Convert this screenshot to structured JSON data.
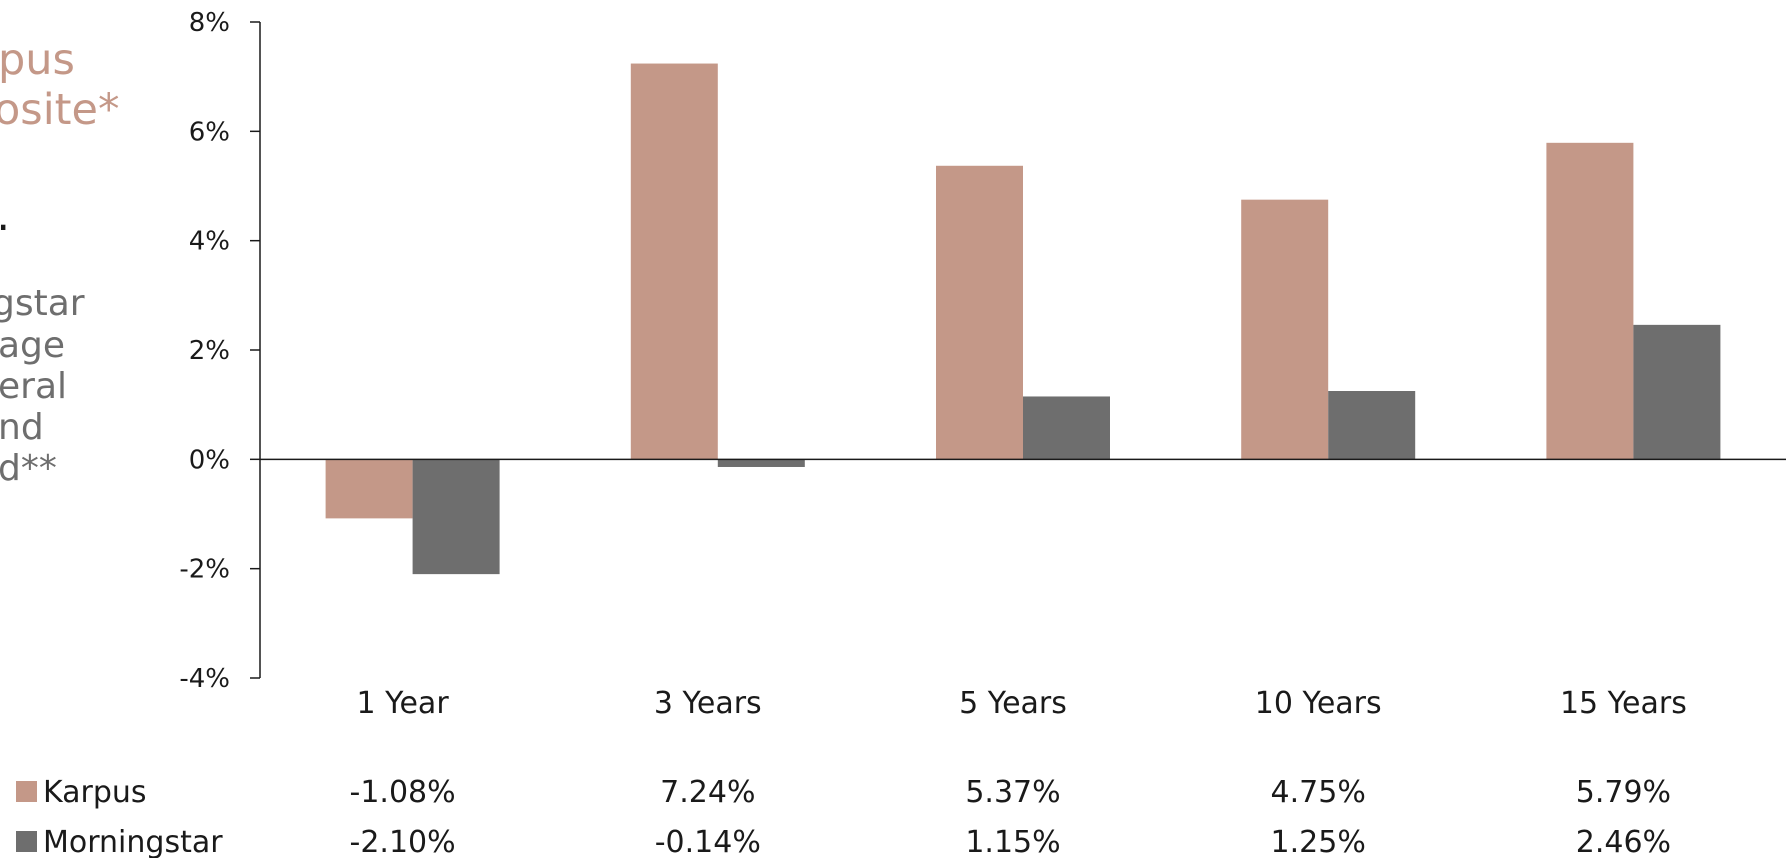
{
  "left_panel": {
    "line1": "pus",
    "line2": "osite*",
    "line3": "s.",
    "line4": "gstar",
    "line5": "age",
    "line6": "eral",
    "line7": "nd",
    "line8": "d**",
    "colors": {
      "title": "#c49888",
      "body": "#1a1a1a",
      "subtitle": "#6e6e6e"
    }
  },
  "chart_data": {
    "type": "bar",
    "categories": [
      "1 Year",
      "3 Years",
      "5 Years",
      "10 Years",
      "15 Years"
    ],
    "series": [
      {
        "name": "Karpus",
        "values": [
          -1.08,
          7.24,
          5.37,
          4.75,
          5.79
        ],
        "labels": [
          "-1.08%",
          "7.24%",
          "5.37%",
          "4.75%",
          "5.79%"
        ],
        "color": "#c49888"
      },
      {
        "name": "Morningstar",
        "values": [
          -2.1,
          -0.14,
          1.15,
          1.25,
          2.46
        ],
        "labels": [
          "-2.10%",
          "-0.14%",
          "1.15%",
          "1.25%",
          "2.46%"
        ],
        "color": "#6e6e6e"
      }
    ],
    "ylim": [
      -4,
      8
    ],
    "yticks": [
      -4,
      -2,
      0,
      2,
      4,
      6,
      8
    ],
    "ytick_labels": [
      "-4%",
      "-2%",
      "0%",
      "2%",
      "4%",
      "6%",
      "8%"
    ],
    "grid": false,
    "legend": "data-table-bottom"
  }
}
